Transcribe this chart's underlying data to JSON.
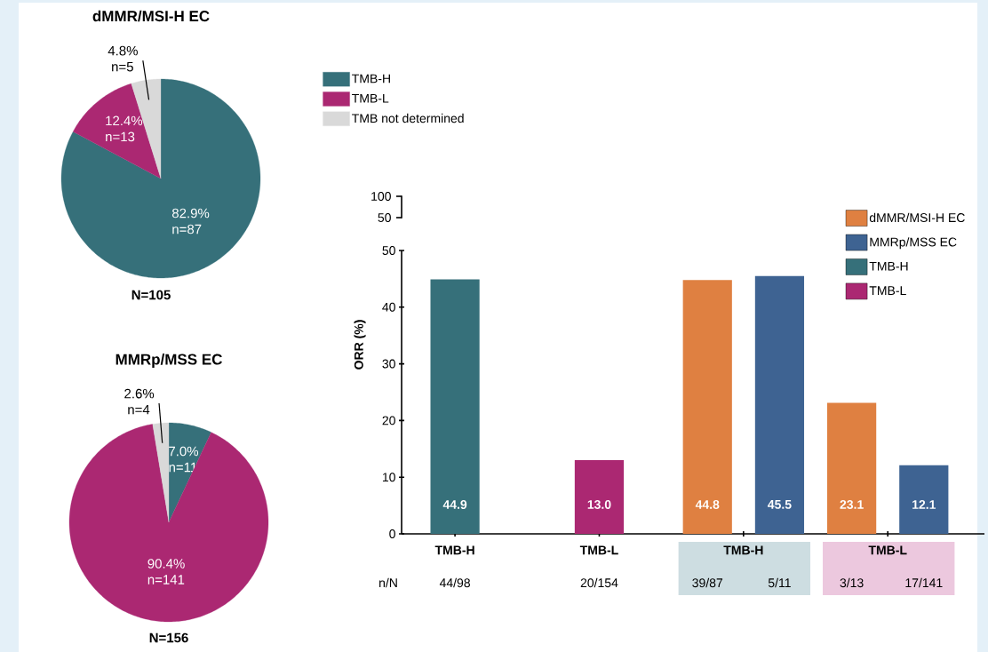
{
  "chart_data": [
    {
      "type": "pie",
      "title": "dMMR/MSI-H EC",
      "categories": [
        "TMB-H",
        "TMB-L",
        "TMB not determined"
      ],
      "values": [
        82.9,
        12.4,
        4.8
      ],
      "colors": [
        "#36707a",
        "#ab2872",
        "#d9d9d9"
      ],
      "value_labels": [
        "82.9% n=87",
        "12.4% n=13",
        "4.8% n=5"
      ],
      "annotations": [
        "N=105"
      ],
      "legend": "top right"
    },
    {
      "type": "pie",
      "title": "MMRp/MSS EC",
      "categories": [
        null,
        null,
        null
      ],
      "values": [
        7.0,
        90.4,
        2.6
      ],
      "colors": [
        "#36707a",
        "#ab2872",
        "#d9d9d9"
      ],
      "value_labels": [
        "7.0% n=11",
        "90.4% n=141",
        "2.6% n=4"
      ],
      "annotations": [
        "N=156"
      ]
    },
    {
      "type": "bar",
      "ylabel": "ORR (%)",
      "categories": [
        "TMB-H",
        "TMB-L",
        "TMB-H",
        "TMB-L"
      ],
      "series": [
        {
          "name": "dMMR/MSI-H EC",
          "color": "#df8041",
          "values": [
            null,
            null,
            44.8,
            23.1
          ],
          "value_labels": [
            null,
            null,
            "44.8",
            "23.1"
          ]
        },
        {
          "name": "MMRp/MSS EC",
          "color": "#3e6392",
          "values": [
            null,
            null,
            45.5,
            12.1
          ],
          "value_labels": [
            null,
            null,
            "45.5",
            "12.1"
          ]
        },
        {
          "name": "TMB-H",
          "color": "#36707a",
          "values": [
            44.9,
            null,
            null,
            null
          ],
          "value_labels": [
            "44.9",
            null,
            null,
            null
          ]
        },
        {
          "name": "TMB-L",
          "color": "#ab2872",
          "values": [
            null,
            13.0,
            null,
            null
          ],
          "value_labels": [
            null,
            "13.0",
            null,
            null
          ]
        }
      ],
      "ylim": [
        0,
        50
      ],
      "yticks": [
        0,
        10,
        20,
        30,
        40,
        50
      ],
      "legend": "top right",
      "annotations": [
        "100",
        "50",
        "n/N",
        "44/98",
        "20/154",
        "39/87",
        "5/11",
        "3/13",
        "17/141"
      ]
    }
  ]
}
